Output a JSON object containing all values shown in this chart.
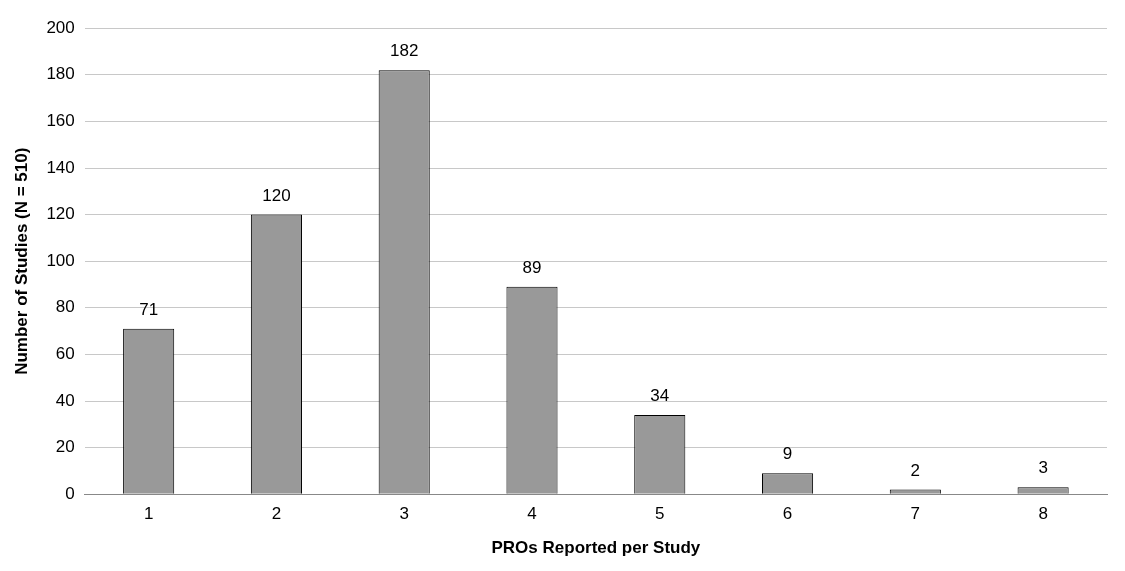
{
  "chart_data": {
    "type": "bar",
    "xlabel": "PROs Reported per Study",
    "ylabel": "Number of Studies (N = 510)",
    "categories": [
      "1",
      "2",
      "3",
      "4",
      "5",
      "6",
      "7",
      "8"
    ],
    "values": [
      71,
      120,
      182,
      89,
      34,
      9,
      2,
      3
    ],
    "color": "#999999",
    "ylim": [
      0,
      200
    ],
    "yticks": [
      0,
      20,
      40,
      60,
      80,
      100,
      120,
      140,
      160,
      180,
      200
    ],
    "grid": "y",
    "data_labels": true,
    "legend": false
  }
}
